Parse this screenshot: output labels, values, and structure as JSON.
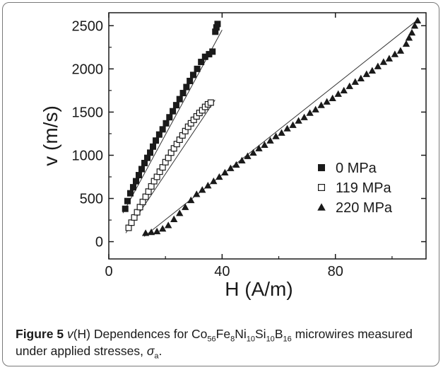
{
  "chart_data": {
    "type": "scatter",
    "xlabel": "H (A/m)",
    "ylabel": "v (m/s)",
    "xlim": [
      0,
      112
    ],
    "ylim": [
      -200,
      2650
    ],
    "x_ticks": [
      0,
      40,
      80
    ],
    "y_ticks": [
      0,
      500,
      1000,
      1500,
      2000,
      2500
    ],
    "legend_position": "center-right",
    "series": [
      {
        "name": "0 MPa",
        "marker": "filled-square",
        "color": "#1a1a1a",
        "points": [
          [
            5.8,
            380
          ],
          [
            6.6,
            470
          ],
          [
            7.6,
            560
          ],
          [
            8.6,
            630
          ],
          [
            9.6,
            700
          ],
          [
            10.6,
            770
          ],
          [
            11.6,
            840
          ],
          [
            12.6,
            910
          ],
          [
            13.6,
            970
          ],
          [
            14.6,
            1030
          ],
          [
            15.6,
            1100
          ],
          [
            16.6,
            1170
          ],
          [
            17.8,
            1240
          ],
          [
            19.0,
            1300
          ],
          [
            20.2,
            1370
          ],
          [
            21.4,
            1440
          ],
          [
            22.6,
            1510
          ],
          [
            23.8,
            1580
          ],
          [
            25.0,
            1650
          ],
          [
            26.2,
            1720
          ],
          [
            27.4,
            1790
          ],
          [
            28.6,
            1860
          ],
          [
            29.8,
            1930
          ],
          [
            31.2,
            2000
          ],
          [
            32.6,
            2080
          ],
          [
            34.0,
            2140
          ],
          [
            35.4,
            2170
          ],
          [
            36.6,
            2200
          ],
          [
            37.6,
            2430
          ],
          [
            38.0,
            2480
          ],
          [
            38.4,
            2520
          ]
        ],
        "fit": [
          [
            5.0,
            330
          ],
          [
            40.0,
            2450
          ]
        ]
      },
      {
        "name": "119 MPa",
        "marker": "open-square",
        "color": "#1a1a1a",
        "points": [
          [
            7.0,
            160
          ],
          [
            8.0,
            220
          ],
          [
            9.0,
            280
          ],
          [
            10.0,
            340
          ],
          [
            11.0,
            400
          ],
          [
            12.0,
            460
          ],
          [
            13.0,
            520
          ],
          [
            14.0,
            580
          ],
          [
            15.0,
            640
          ],
          [
            16.0,
            700
          ],
          [
            17.0,
            750
          ],
          [
            18.0,
            810
          ],
          [
            19.0,
            860
          ],
          [
            20.0,
            920
          ],
          [
            21.0,
            970
          ],
          [
            22.0,
            1030
          ],
          [
            23.0,
            1080
          ],
          [
            24.0,
            1130
          ],
          [
            25.0,
            1180
          ],
          [
            26.0,
            1230
          ],
          [
            27.0,
            1280
          ],
          [
            28.0,
            1330
          ],
          [
            29.0,
            1370
          ],
          [
            30.0,
            1410
          ],
          [
            31.0,
            1450
          ],
          [
            32.0,
            1490
          ],
          [
            33.0,
            1520
          ],
          [
            34.0,
            1560
          ],
          [
            35.0,
            1590
          ],
          [
            36.0,
            1610
          ]
        ],
        "fit": [
          [
            6.0,
            100
          ],
          [
            37.5,
            1640
          ]
        ]
      },
      {
        "name": "220 MPa",
        "marker": "filled-triangle",
        "color": "#1a1a1a",
        "points": [
          [
            13.0,
            100
          ],
          [
            15.0,
            110
          ],
          [
            17.0,
            120
          ],
          [
            19.0,
            150
          ],
          [
            21.0,
            190
          ],
          [
            23.0,
            260
          ],
          [
            25.0,
            330
          ],
          [
            27.0,
            400
          ],
          [
            29.0,
            480
          ],
          [
            31.0,
            550
          ],
          [
            33.0,
            600
          ],
          [
            35.0,
            650
          ],
          [
            37.0,
            700
          ],
          [
            39.0,
            750
          ],
          [
            41.0,
            800
          ],
          [
            43.0,
            850
          ],
          [
            45.0,
            890
          ],
          [
            47.0,
            940
          ],
          [
            49.0,
            990
          ],
          [
            51.0,
            1030
          ],
          [
            53.0,
            1080
          ],
          [
            55.0,
            1120
          ],
          [
            57.0,
            1170
          ],
          [
            59.0,
            1220
          ],
          [
            61.0,
            1260
          ],
          [
            63.0,
            1310
          ],
          [
            65.0,
            1350
          ],
          [
            67.0,
            1400
          ],
          [
            69.0,
            1440
          ],
          [
            71.0,
            1490
          ],
          [
            73.0,
            1530
          ],
          [
            75.0,
            1580
          ],
          [
            77.0,
            1620
          ],
          [
            79.0,
            1660
          ],
          [
            81.0,
            1710
          ],
          [
            83.0,
            1750
          ],
          [
            85.0,
            1800
          ],
          [
            87.0,
            1850
          ],
          [
            89.0,
            1890
          ],
          [
            91.0,
            1940
          ],
          [
            93.0,
            1980
          ],
          [
            95.0,
            2030
          ],
          [
            97.0,
            2080
          ],
          [
            99.0,
            2120
          ],
          [
            101.0,
            2170
          ],
          [
            103.0,
            2210
          ],
          [
            105.0,
            2290
          ],
          [
            106.0,
            2360
          ],
          [
            107.0,
            2420
          ],
          [
            108.0,
            2500
          ],
          [
            109.0,
            2560
          ]
        ],
        "fit": [
          [
            12.5,
            60
          ],
          [
            109.5,
            2580
          ]
        ]
      }
    ]
  },
  "caption": {
    "label": "Figure 5",
    "v_symbol": "v",
    "h_arg": "(H)",
    "text_before": "Dependences for Co",
    "sub_co": "56",
    "fe": "Fe",
    "sub_fe": "8",
    "ni": "Ni",
    "sub_ni": "10",
    "si": "Si",
    "sub_si": "10",
    "b": "B",
    "sub_b": "16",
    "text_after": " microwires measured under applied stresses, ",
    "sigma": "σ",
    "sub_a": "a",
    "end": "."
  }
}
